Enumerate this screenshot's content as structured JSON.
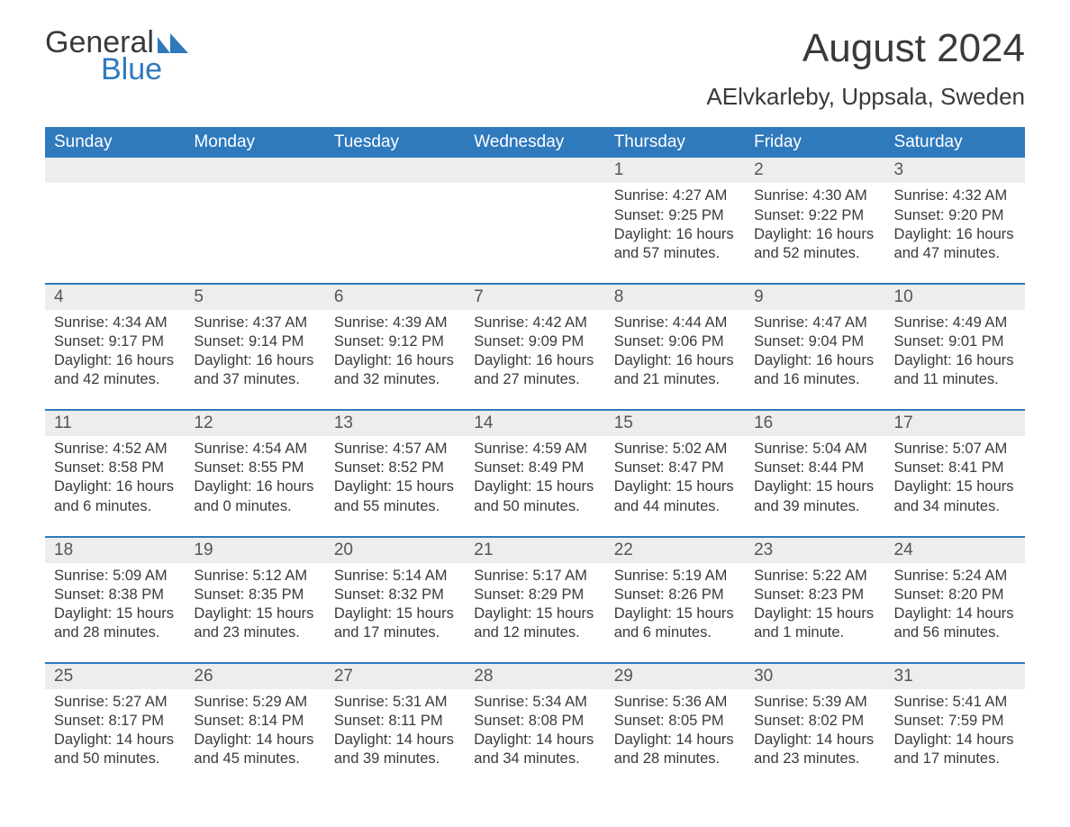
{
  "brand": {
    "word1": "General",
    "word2": "Blue",
    "flag_color": "#2f79bd"
  },
  "title": "August 2024",
  "location": "AElvkarleby, Uppsala, Sweden",
  "colors": {
    "header_bg": "#2f79bd",
    "header_text": "#ffffff",
    "daynum_bg": "#ededed",
    "text": "#3a3a3a",
    "rule": "#2f79bd",
    "page_bg": "#ffffff"
  },
  "typography": {
    "body_pt": 12,
    "title_pt": 33,
    "location_pt": 20,
    "weekday_pt": 14
  },
  "calendar": {
    "type": "table",
    "weekdays": [
      "Sunday",
      "Monday",
      "Tuesday",
      "Wednesday",
      "Thursday",
      "Friday",
      "Saturday"
    ],
    "first_weekday_index": 4,
    "days": [
      {
        "n": 1,
        "sunrise": "4:27 AM",
        "sunset": "9:25 PM",
        "daylight": "16 hours and 57 minutes."
      },
      {
        "n": 2,
        "sunrise": "4:30 AM",
        "sunset": "9:22 PM",
        "daylight": "16 hours and 52 minutes."
      },
      {
        "n": 3,
        "sunrise": "4:32 AM",
        "sunset": "9:20 PM",
        "daylight": "16 hours and 47 minutes."
      },
      {
        "n": 4,
        "sunrise": "4:34 AM",
        "sunset": "9:17 PM",
        "daylight": "16 hours and 42 minutes."
      },
      {
        "n": 5,
        "sunrise": "4:37 AM",
        "sunset": "9:14 PM",
        "daylight": "16 hours and 37 minutes."
      },
      {
        "n": 6,
        "sunrise": "4:39 AM",
        "sunset": "9:12 PM",
        "daylight": "16 hours and 32 minutes."
      },
      {
        "n": 7,
        "sunrise": "4:42 AM",
        "sunset": "9:09 PM",
        "daylight": "16 hours and 27 minutes."
      },
      {
        "n": 8,
        "sunrise": "4:44 AM",
        "sunset": "9:06 PM",
        "daylight": "16 hours and 21 minutes."
      },
      {
        "n": 9,
        "sunrise": "4:47 AM",
        "sunset": "9:04 PM",
        "daylight": "16 hours and 16 minutes."
      },
      {
        "n": 10,
        "sunrise": "4:49 AM",
        "sunset": "9:01 PM",
        "daylight": "16 hours and 11 minutes."
      },
      {
        "n": 11,
        "sunrise": "4:52 AM",
        "sunset": "8:58 PM",
        "daylight": "16 hours and 6 minutes."
      },
      {
        "n": 12,
        "sunrise": "4:54 AM",
        "sunset": "8:55 PM",
        "daylight": "16 hours and 0 minutes."
      },
      {
        "n": 13,
        "sunrise": "4:57 AM",
        "sunset": "8:52 PM",
        "daylight": "15 hours and 55 minutes."
      },
      {
        "n": 14,
        "sunrise": "4:59 AM",
        "sunset": "8:49 PM",
        "daylight": "15 hours and 50 minutes."
      },
      {
        "n": 15,
        "sunrise": "5:02 AM",
        "sunset": "8:47 PM",
        "daylight": "15 hours and 44 minutes."
      },
      {
        "n": 16,
        "sunrise": "5:04 AM",
        "sunset": "8:44 PM",
        "daylight": "15 hours and 39 minutes."
      },
      {
        "n": 17,
        "sunrise": "5:07 AM",
        "sunset": "8:41 PM",
        "daylight": "15 hours and 34 minutes."
      },
      {
        "n": 18,
        "sunrise": "5:09 AM",
        "sunset": "8:38 PM",
        "daylight": "15 hours and 28 minutes."
      },
      {
        "n": 19,
        "sunrise": "5:12 AM",
        "sunset": "8:35 PM",
        "daylight": "15 hours and 23 minutes."
      },
      {
        "n": 20,
        "sunrise": "5:14 AM",
        "sunset": "8:32 PM",
        "daylight": "15 hours and 17 minutes."
      },
      {
        "n": 21,
        "sunrise": "5:17 AM",
        "sunset": "8:29 PM",
        "daylight": "15 hours and 12 minutes."
      },
      {
        "n": 22,
        "sunrise": "5:19 AM",
        "sunset": "8:26 PM",
        "daylight": "15 hours and 6 minutes."
      },
      {
        "n": 23,
        "sunrise": "5:22 AM",
        "sunset": "8:23 PM",
        "daylight": "15 hours and 1 minute."
      },
      {
        "n": 24,
        "sunrise": "5:24 AM",
        "sunset": "8:20 PM",
        "daylight": "14 hours and 56 minutes."
      },
      {
        "n": 25,
        "sunrise": "5:27 AM",
        "sunset": "8:17 PM",
        "daylight": "14 hours and 50 minutes."
      },
      {
        "n": 26,
        "sunrise": "5:29 AM",
        "sunset": "8:14 PM",
        "daylight": "14 hours and 45 minutes."
      },
      {
        "n": 27,
        "sunrise": "5:31 AM",
        "sunset": "8:11 PM",
        "daylight": "14 hours and 39 minutes."
      },
      {
        "n": 28,
        "sunrise": "5:34 AM",
        "sunset": "8:08 PM",
        "daylight": "14 hours and 34 minutes."
      },
      {
        "n": 29,
        "sunrise": "5:36 AM",
        "sunset": "8:05 PM",
        "daylight": "14 hours and 28 minutes."
      },
      {
        "n": 30,
        "sunrise": "5:39 AM",
        "sunset": "8:02 PM",
        "daylight": "14 hours and 23 minutes."
      },
      {
        "n": 31,
        "sunrise": "5:41 AM",
        "sunset": "7:59 PM",
        "daylight": "14 hours and 17 minutes."
      }
    ],
    "labels": {
      "sunrise": "Sunrise:",
      "sunset": "Sunset:",
      "daylight": "Daylight:"
    }
  }
}
